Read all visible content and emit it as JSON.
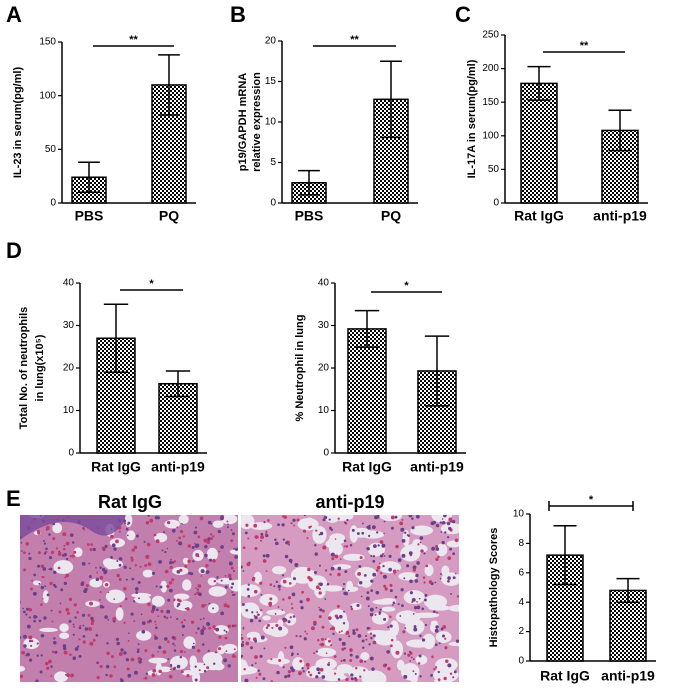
{
  "panels": [
    "A",
    "B",
    "C",
    "D",
    "E"
  ],
  "images": [
    "Rat IgG",
    "anti-p19"
  ],
  "chart_data": [
    {
      "type": "bar",
      "ylabel": [
        "IL-23 in serum(pg/ml)"
      ],
      "categories": [
        "PBS",
        "PQ"
      ],
      "values": [
        24,
        110
      ],
      "errors": [
        14,
        28
      ],
      "ylim": [
        0,
        150
      ],
      "yticks": [
        0,
        50,
        100,
        150
      ],
      "significance": "**"
    },
    {
      "type": "bar",
      "ylabel": [
        "p19/GAPDH mRNA",
        "relative expression"
      ],
      "categories": [
        "PBS",
        "PQ"
      ],
      "values": [
        2.5,
        12.8
      ],
      "errors": [
        1.5,
        4.7
      ],
      "ylim": [
        0,
        20
      ],
      "yticks": [
        0,
        5,
        10,
        15,
        20
      ],
      "significance": "**"
    },
    {
      "type": "bar",
      "ylabel": [
        "IL-17A in serum(pg/ml)"
      ],
      "categories": [
        "Rat IgG",
        "anti-p19"
      ],
      "values": [
        178,
        108
      ],
      "errors": [
        25,
        30
      ],
      "ylim": [
        0,
        250
      ],
      "yticks": [
        0,
        50,
        100,
        150,
        200,
        250
      ],
      "significance": "**"
    },
    {
      "type": "bar",
      "ylabel": [
        "Total No. of neutrophils",
        "in lung(x10⁵)"
      ],
      "categories": [
        "Rat IgG",
        "anti-p19"
      ],
      "values": [
        27,
        16.3
      ],
      "errors": [
        8,
        3
      ],
      "ylim": [
        0,
        40
      ],
      "yticks": [
        0,
        10,
        20,
        30,
        40
      ],
      "significance": "*"
    },
    {
      "type": "bar",
      "ylabel": [
        "% Neutrophil in lung"
      ],
      "categories": [
        "Rat IgG",
        "anti-p19"
      ],
      "values": [
        29.2,
        19.3
      ],
      "errors": [
        4.3,
        8.2
      ],
      "ylim": [
        0,
        40
      ],
      "yticks": [
        0,
        10,
        20,
        30,
        40
      ],
      "significance": "*"
    },
    {
      "type": "bar",
      "ylabel": [
        "Histopathology Scores"
      ],
      "categories": [
        "Rat IgG",
        "anti-p19"
      ],
      "values": [
        7.2,
        4.8
      ],
      "errors": [
        2,
        0.8
      ],
      "ylim": [
        0,
        10
      ],
      "yticks": [
        0,
        2,
        4,
        6,
        8,
        10
      ],
      "significance": "*"
    }
  ]
}
